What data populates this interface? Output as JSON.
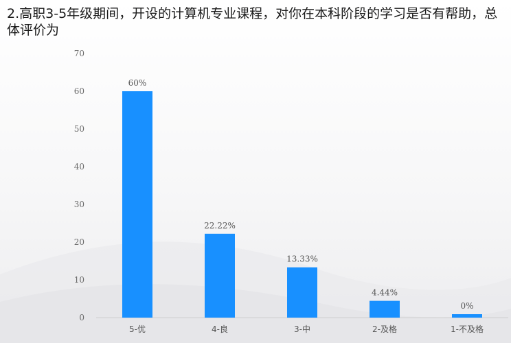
{
  "title": "2.高职3-5年级期间，开设的计算机专业课程，对你在本科阶段的学习是否有帮助，总体评价为",
  "colors": {
    "bar": "#1890ff",
    "axis": "#cfcfcf",
    "text": "#555555"
  },
  "chart_data": {
    "type": "bar",
    "title": "2.高职3-5年级期间，开设的计算机专业课程，对你在本科阶段的学习是否有帮助，总体评价为",
    "categories": [
      "5-优",
      "4-良",
      "3-中",
      "2-及格",
      "1-不及格"
    ],
    "values": [
      60,
      22.22,
      13.33,
      4.44,
      0
    ],
    "data_labels": [
      "60%",
      "22.22%",
      "13.33%",
      "4.44%",
      "0%"
    ],
    "yticks": [
      "0",
      "10",
      "20",
      "30",
      "40",
      "50",
      "60",
      "70"
    ],
    "ylim": [
      0,
      70
    ],
    "grid": false,
    "legend": "none"
  }
}
